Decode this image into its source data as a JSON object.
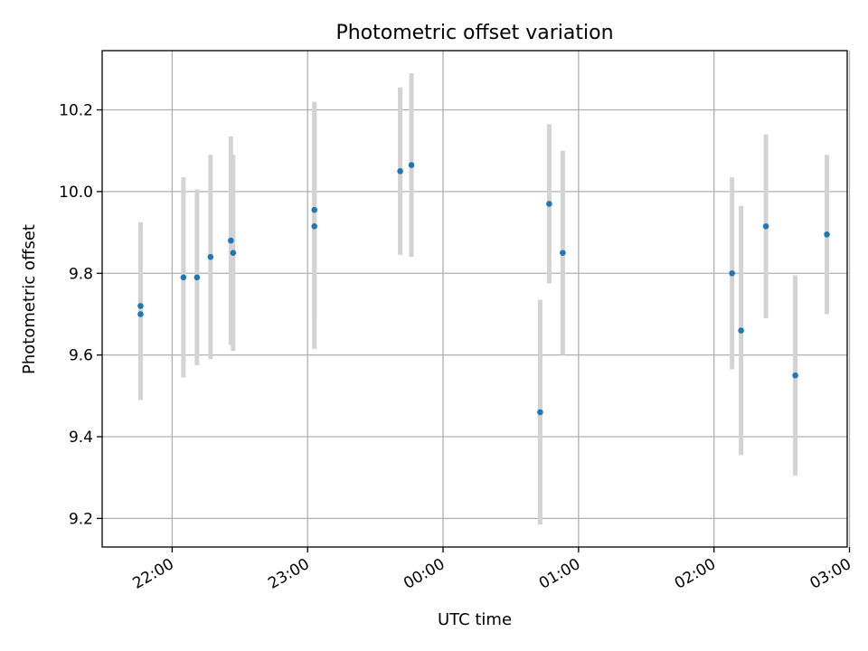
{
  "chart_data": {
    "type": "scatter",
    "title": "Photometric offset variation",
    "xlabel": "UTC time",
    "ylabel": "Photometric offset",
    "xlim_minutes": [
      -91,
      239
    ],
    "ylim": [
      9.13,
      10.345
    ],
    "grid": true,
    "x_ticks": [
      {
        "label": "22:00",
        "minutes": -60
      },
      {
        "label": "23:00",
        "minutes": 0
      },
      {
        "label": "00:00",
        "minutes": 60
      },
      {
        "label": "01:00",
        "minutes": 120
      },
      {
        "label": "02:00",
        "minutes": 180
      },
      {
        "label": "03:00",
        "minutes": 240
      }
    ],
    "y_ticks": [
      9.2,
      9.4,
      9.6,
      9.8,
      10.0,
      10.2
    ],
    "y_tick_labels": [
      "9.2",
      "9.4",
      "9.6",
      "9.8",
      "10.0",
      "10.2"
    ],
    "points": [
      {
        "time": "21:46",
        "y": 9.72,
        "err": 0.205
      },
      {
        "time": "21:46",
        "y": 9.7,
        "err": 0.21
      },
      {
        "time": "22:05",
        "y": 9.79,
        "err": 0.245
      },
      {
        "time": "22:11",
        "y": 9.79,
        "err": 0.215
      },
      {
        "time": "22:17",
        "y": 9.84,
        "err": 0.25
      },
      {
        "time": "22:26",
        "y": 9.88,
        "err": 0.255
      },
      {
        "time": "22:27",
        "y": 9.85,
        "err": 0.24
      },
      {
        "time": "23:03",
        "y": 9.955,
        "err": 0.265
      },
      {
        "time": "23:03",
        "y": 9.915,
        "err": 0.3
      },
      {
        "time": "23:41",
        "y": 10.05,
        "err": 0.205
      },
      {
        "time": "23:46",
        "y": 10.065,
        "err": 0.225
      },
      {
        "time": "00:43",
        "y": 9.46,
        "err": 0.275
      },
      {
        "time": "00:47",
        "y": 9.97,
        "err": 0.195
      },
      {
        "time": "00:53",
        "y": 9.85,
        "err": 0.25
      },
      {
        "time": "02:08",
        "y": 9.8,
        "err": 0.235
      },
      {
        "time": "02:12",
        "y": 9.66,
        "err": 0.305
      },
      {
        "time": "02:23",
        "y": 9.915,
        "err": 0.225
      },
      {
        "time": "02:36",
        "y": 9.55,
        "err": 0.245
      },
      {
        "time": "02:50",
        "y": 9.895,
        "err": 0.195
      }
    ]
  }
}
